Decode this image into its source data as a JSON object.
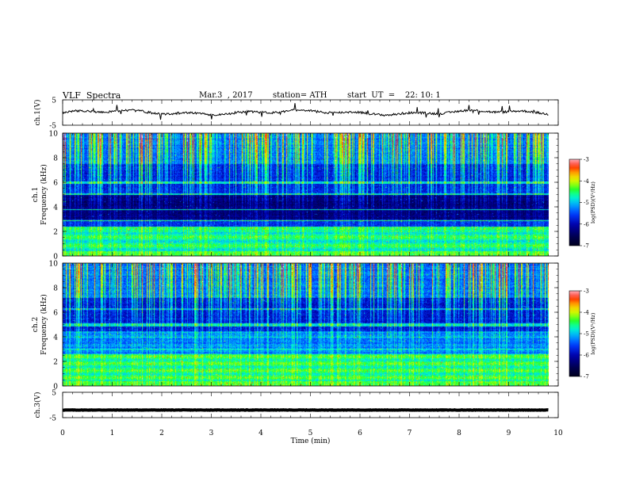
{
  "header": {
    "title": "VLF  Spectra",
    "date": "Mar.3  , 2017",
    "station": "station= ATH",
    "start": "start  UT  =    22: 10: 1"
  },
  "chart_data": [
    {
      "type": "line",
      "panel": "ch1-waveform",
      "ylabel": "ch.1(V)",
      "yticks": [
        "5",
        "-5"
      ],
      "ylim": [
        -5,
        5
      ],
      "xlim": [
        0,
        10
      ],
      "data_extent_min": 9.8,
      "series_level": 0.0,
      "trace_color": "#000000"
    },
    {
      "type": "heatmap",
      "panel": "ch1-spectrogram",
      "ylabel": "ch.1\nFrequency  (kHz)",
      "ylabel_line1": "ch.1",
      "ylabel_line2": "Frequency  (kHz)",
      "yticks": [
        "0",
        "2",
        "4",
        "6",
        "8",
        "10"
      ],
      "ylim": [
        0,
        10
      ],
      "xlim": [
        0,
        10
      ],
      "data_extent_min": 9.8,
      "colorbar": {
        "label": "log(PSD)(V²/Hz)",
        "ticks": [
          "-3",
          "-4",
          "-5",
          "-6",
          "-7"
        ],
        "range": [
          -7,
          -3
        ]
      }
    },
    {
      "type": "heatmap",
      "panel": "ch2-spectrogram",
      "ylabel": "ch.2\nFrequency  (kHz)",
      "ylabel_line1": "ch.2",
      "ylabel_line2": "Frequency  (kHz)",
      "yticks": [
        "0",
        "2",
        "4",
        "6",
        "8",
        "10"
      ],
      "ylim": [
        0,
        10
      ],
      "xlim": [
        0,
        10
      ],
      "data_extent_min": 9.8,
      "colorbar": {
        "label": "log(PSD)(V²/Hz)",
        "ticks": [
          "-3",
          "-4",
          "-5",
          "-6",
          "-7"
        ],
        "range": [
          -7,
          -3
        ]
      }
    },
    {
      "type": "line",
      "panel": "ch3-waveform",
      "ylabel": "ch.3(V)",
      "yticks": [
        "5",
        "-5"
      ],
      "ylim": [
        -5,
        5
      ],
      "xlim": [
        0,
        10
      ],
      "data_extent_min": 9.8,
      "series_level": -2.0,
      "trace_color": "#000000",
      "xlabel": "Time  (min)",
      "xticks": [
        "0",
        "1",
        "2",
        "3",
        "4",
        "5",
        "6",
        "7",
        "8",
        "9",
        "10"
      ]
    }
  ]
}
